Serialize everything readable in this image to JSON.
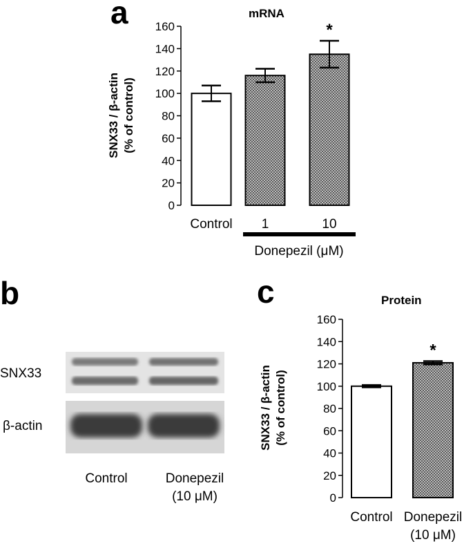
{
  "panels": {
    "a": "a",
    "b": "b",
    "c": "c"
  },
  "colors": {
    "bar_outline": "#000000",
    "control_fill": "#ffffff",
    "treated_fill": "#9a9a9a"
  },
  "chart_data": [
    {
      "type": "bar",
      "title": "mRNA",
      "ylabel_line1": "SNX33 / β-actin",
      "ylabel_line2": "(% of control)",
      "ylim": [
        0,
        160
      ],
      "yticks": [
        0,
        20,
        40,
        60,
        80,
        100,
        120,
        140,
        160
      ],
      "categories": [
        "Control",
        "1",
        "10"
      ],
      "values": [
        100,
        116,
        135
      ],
      "errors": [
        7,
        6,
        12
      ],
      "significance": [
        "",
        "",
        "*"
      ],
      "group_label": "Donepezil (μM)"
    },
    {
      "type": "bar",
      "title": "Protein",
      "ylabel_line1": "SNX33 / β-actin",
      "ylabel_line2": "(% of control)",
      "ylim": [
        0,
        160
      ],
      "yticks": [
        0,
        20,
        40,
        60,
        80,
        100,
        120,
        140,
        160
      ],
      "categories": [
        "Control",
        "Donepezil"
      ],
      "category_sublabels": [
        "",
        "(10 μM)"
      ],
      "values": [
        100,
        121
      ],
      "errors": [
        1,
        1.5
      ],
      "significance": [
        "",
        "*"
      ]
    }
  ],
  "blot": {
    "rows": [
      "SNX33",
      "β-actin"
    ],
    "lanes": [
      "Control",
      "Donepezil"
    ],
    "lane_sublabels": [
      "",
      "(10 μM)"
    ]
  }
}
